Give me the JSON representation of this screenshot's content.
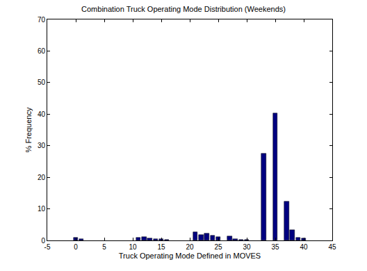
{
  "chart_data": {
    "type": "bar",
    "title": "Combination Truck Operating Mode Distribution (Weekends)",
    "x_label": "Truck Operating Mode Defined in MOVES",
    "y_label": "% Frequency",
    "x": [
      0,
      1,
      11,
      12,
      13,
      14,
      15,
      16,
      21,
      22,
      23,
      24,
      25,
      27,
      28,
      29,
      30,
      33,
      35,
      37,
      38,
      39,
      40
    ],
    "values": [
      0.8,
      0.4,
      0.8,
      1.0,
      0.6,
      0.4,
      0.5,
      0.3,
      2.7,
      1.7,
      2.2,
      1.6,
      1.2,
      1.4,
      0.4,
      0.2,
      0.2,
      27.6,
      40.2,
      12.4,
      3.2,
      0.8,
      0.6
    ],
    "color": "#000080",
    "xlim": [
      -5,
      45
    ],
    "xticks": [
      -5,
      0,
      5,
      10,
      15,
      20,
      25,
      30,
      35,
      40,
      45
    ],
    "ylim": [
      0,
      70
    ],
    "yticks": [
      0,
      10,
      20,
      30,
      40,
      50,
      60,
      70
    ],
    "grid": false
  }
}
